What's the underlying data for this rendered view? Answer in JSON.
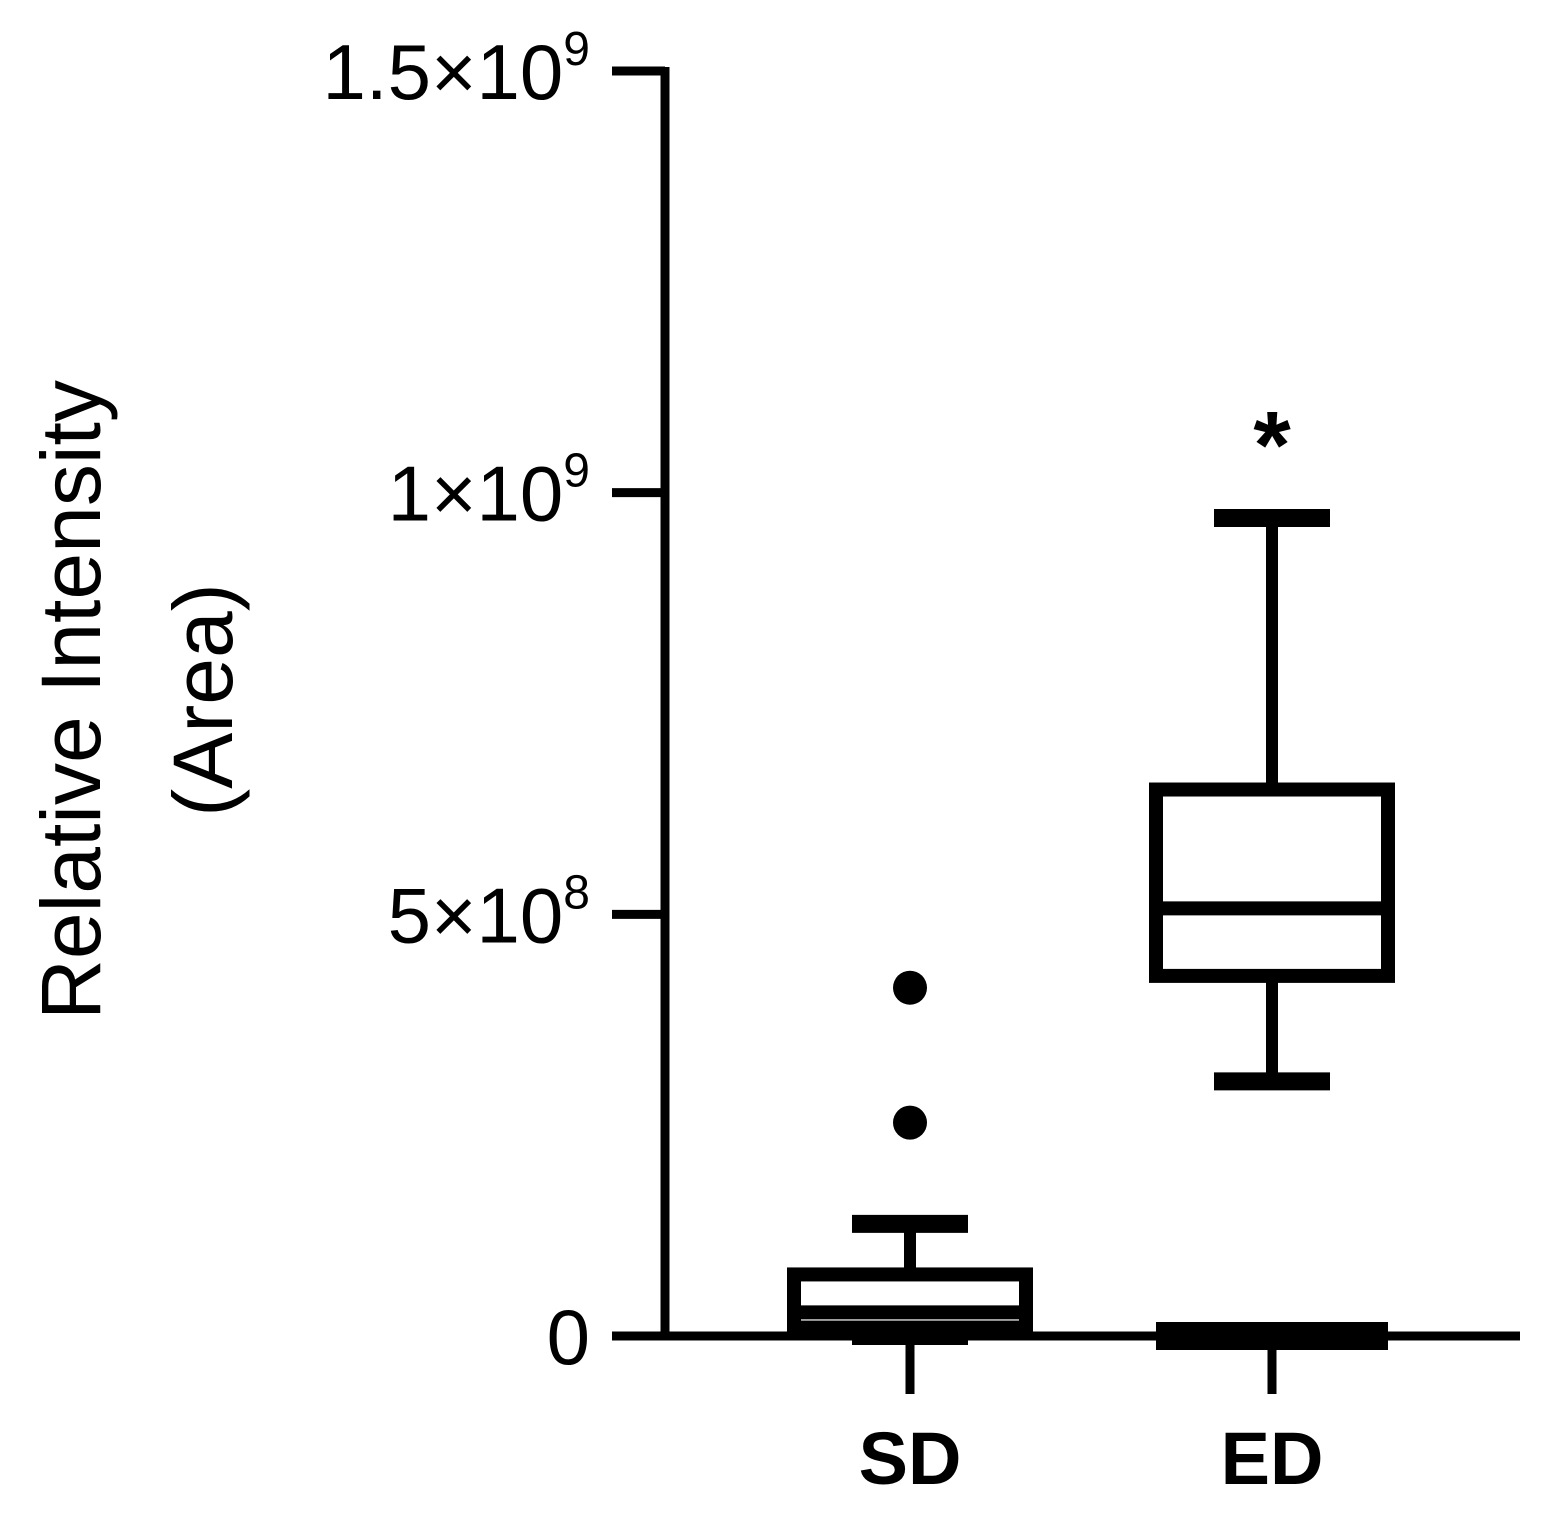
{
  "chart_data": {
    "type": "box",
    "ylabel": [
      "Relative Intensity",
      "(Area)"
    ],
    "ylim": [
      0,
      1500000000
    ],
    "yticks": [
      {
        "value": 0,
        "mantissa": "0",
        "exponent": ""
      },
      {
        "value": 500000000,
        "mantissa": "5×10",
        "exponent": "8"
      },
      {
        "value": 1000000000,
        "mantissa": "1×10",
        "exponent": "9"
      },
      {
        "value": 1500000000,
        "mantissa": "1.5×10",
        "exponent": "9"
      }
    ],
    "categories": [
      "SD",
      "ED"
    ],
    "boxes": [
      {
        "category": "SD",
        "whisker_low": 0,
        "q1": 10000000,
        "median": 28000000,
        "q3": 73000000,
        "whisker_high": 133000000,
        "outliers": [
          253000000,
          413000000
        ]
      },
      {
        "category": "ED",
        "whisker_low": 302000000,
        "q1": 427000000,
        "median": 507000000,
        "q3": 648000000,
        "whisker_high": 970000000,
        "outliers": []
      }
    ],
    "annotations": [
      {
        "category": "ED",
        "text": "*"
      }
    ],
    "grid": false,
    "legend": "none"
  }
}
